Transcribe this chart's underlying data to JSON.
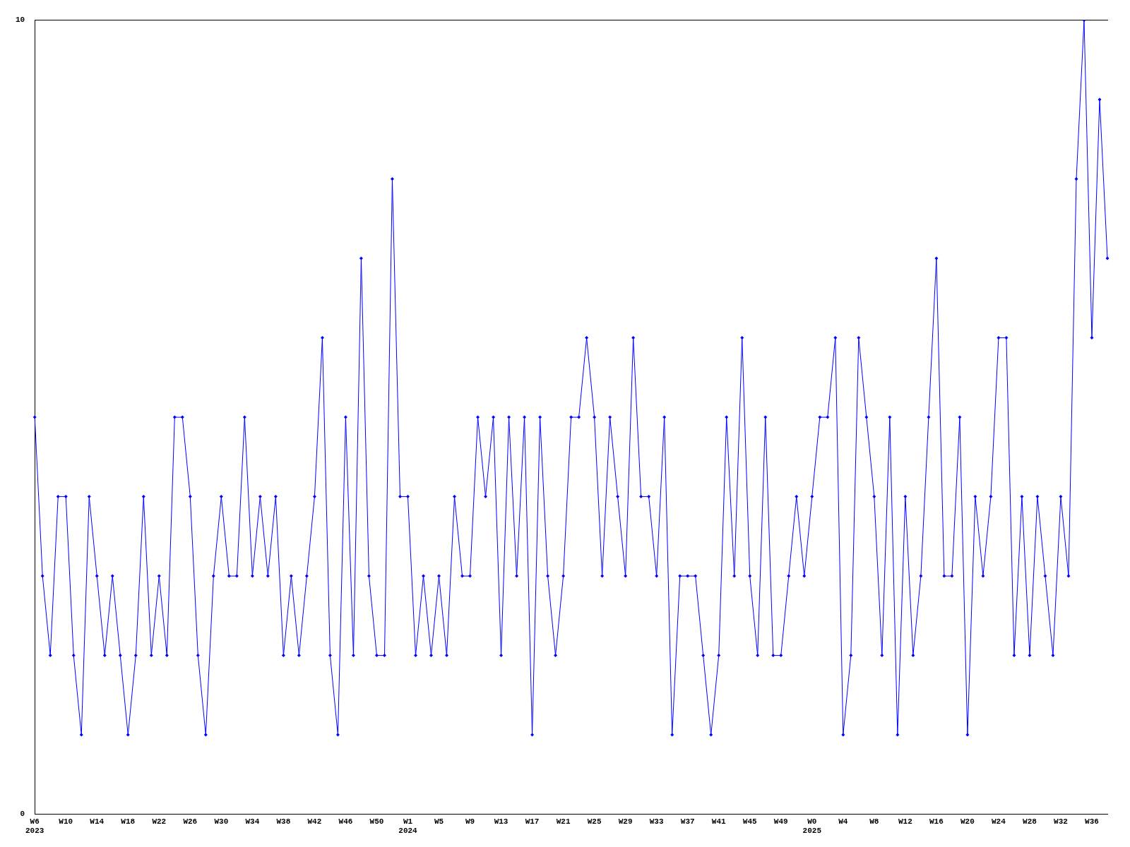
{
  "chart_data": {
    "type": "line",
    "categories": [
      "W6\n2023",
      null,
      null,
      null,
      "W10",
      null,
      null,
      null,
      "W14",
      null,
      null,
      null,
      "W18",
      null,
      null,
      null,
      "W22",
      null,
      null,
      null,
      "W26",
      null,
      null,
      null,
      "W30",
      null,
      null,
      null,
      "W34",
      null,
      null,
      null,
      "W38",
      null,
      null,
      null,
      "W42",
      null,
      null,
      null,
      "W46",
      null,
      null,
      null,
      "W50",
      null,
      null,
      null,
      "W1\n2024",
      null,
      null,
      null,
      "W5",
      null,
      null,
      null,
      "W9",
      null,
      null,
      null,
      "W13",
      null,
      null,
      null,
      "W17",
      null,
      null,
      null,
      "W21",
      null,
      null,
      null,
      "W25",
      null,
      null,
      null,
      "W29",
      null,
      null,
      null,
      "W33",
      null,
      null,
      null,
      "W37",
      null,
      null,
      null,
      "W41",
      null,
      null,
      null,
      "W45",
      null,
      null,
      null,
      "W49",
      null,
      null,
      null,
      "W0\n2025",
      null,
      null,
      null,
      "W4",
      null,
      null,
      null,
      "W8",
      null,
      null,
      null,
      "W12",
      null,
      null,
      null,
      "W16",
      null,
      null,
      null,
      "W20",
      null,
      null,
      null,
      "W24",
      null,
      null,
      null,
      "W28",
      null,
      null,
      null,
      "W32",
      null,
      null,
      null,
      "W36",
      null,
      null
    ],
    "series": [
      {
        "color": "#0000ff",
        "values": [
          5,
          3,
          2,
          4,
          4,
          2,
          1,
          4,
          3,
          2,
          3,
          2,
          1,
          2,
          4,
          2,
          3,
          2,
          5,
          5,
          4,
          2,
          1,
          3,
          4,
          3,
          3,
          5,
          3,
          4,
          3,
          4,
          2,
          3,
          2,
          3,
          4,
          6,
          2,
          1,
          5,
          2,
          7,
          3,
          2,
          2,
          8,
          4,
          4,
          2,
          3,
          2,
          3,
          2,
          4,
          3,
          3,
          5,
          4,
          5,
          2,
          5,
          3,
          5,
          1,
          5,
          3,
          2,
          3,
          5,
          5,
          6,
          5,
          3,
          5,
          4,
          3,
          6,
          4,
          4,
          3,
          5,
          1,
          3,
          3,
          3,
          2,
          1,
          2,
          5,
          3,
          6,
          3,
          2,
          5,
          2,
          2,
          3,
          4,
          3,
          4,
          5,
          5,
          6,
          1,
          2,
          6,
          5,
          4,
          2,
          5,
          1,
          4,
          2,
          3,
          5,
          7,
          3,
          3,
          5,
          1,
          4,
          3,
          4,
          6,
          6,
          2,
          4,
          2,
          4,
          3,
          2,
          4,
          3,
          8,
          10,
          6,
          9,
          7
        ]
      }
    ],
    "ylim": [
      0,
      10
    ],
    "yticks": [
      0,
      10
    ],
    "marker": "diamond",
    "line_style": "solid"
  }
}
